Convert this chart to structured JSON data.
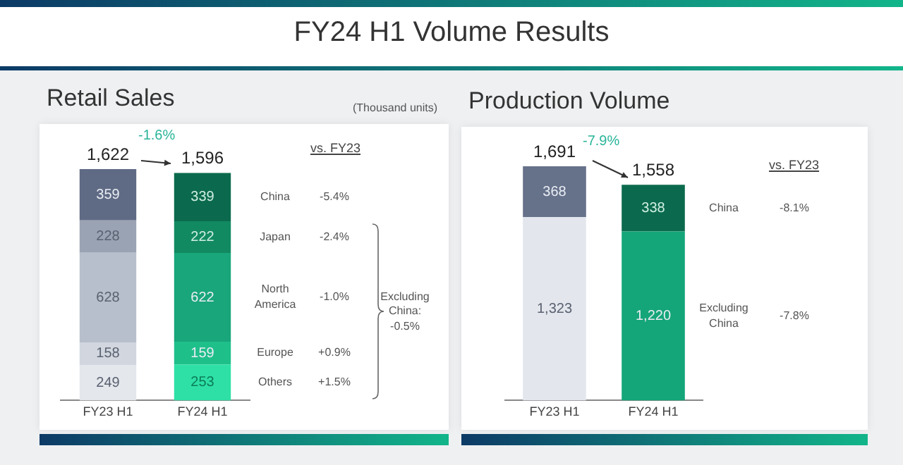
{
  "chart_data": [
    {
      "type": "other",
      "title": "FY24 H1 Volume Results"
    },
    {
      "type": "bar",
      "title": "Retail Sales",
      "stacked": true,
      "data_labels": true,
      "categories": [
        "FY23 H1",
        "FY24 H1"
      ],
      "series": [
        {
          "name": "Others",
          "colors": [
            "#e4e7ec",
            "#2ee0a6"
          ],
          "values": [
            249,
            253
          ]
        },
        {
          "name": "Europe",
          "colors": [
            "#d2d7df",
            "#1fbf8a"
          ],
          "values": [
            158,
            159
          ]
        },
        {
          "name": "North America",
          "colors": [
            "#b8bfcc",
            "#18a67a"
          ],
          "values": [
            628,
            622
          ]
        },
        {
          "name": "Japan",
          "colors": [
            "#9aa3b4",
            "#128a61"
          ],
          "values": [
            228,
            222
          ]
        },
        {
          "name": "China",
          "colors": [
            "#5f6a84",
            "#0b6a4d"
          ],
          "values": [
            359,
            339
          ]
        }
      ],
      "totals": [
        "1,622",
        "1,596"
      ],
      "annotations": [
        "(Thousand units)",
        "-1.6%",
        "vs. FY23",
        "Excluding China: -0.5%",
        "-5.4%",
        "-2.4%",
        "-1.0%",
        "+0.9%",
        "+1.5%"
      ]
    },
    {
      "type": "bar",
      "title": "Production Volume",
      "stacked": true,
      "categories": [
        "FY23 H1",
        "FY24 H1"
      ],
      "series": [
        {
          "name": "Excluding China",
          "colors": [
            "#e3e7ed",
            "#14a578"
          ],
          "values": [
            1323,
            1220
          ],
          "value_labels": [
            "1,323",
            "1,220"
          ]
        },
        {
          "name": "China",
          "colors": [
            "#66718a",
            "#0b6a4d"
          ],
          "values": [
            368,
            338
          ],
          "value_labels": [
            "368",
            "338"
          ]
        }
      ],
      "totals": [
        "1,691",
        "1,558"
      ],
      "annotations": [
        "-7.9%",
        "vs. FY23",
        "-8.1%",
        "-7.8%"
      ]
    }
  ]
}
